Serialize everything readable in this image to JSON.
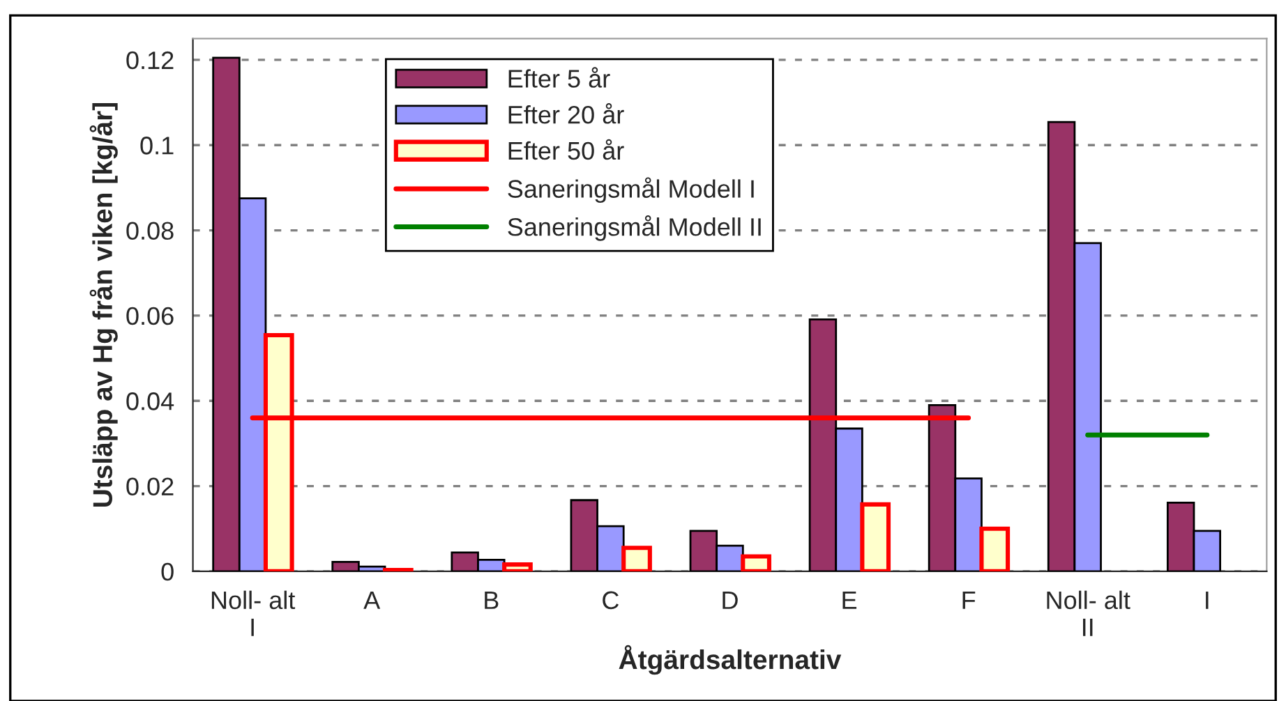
{
  "chart_data": {
    "type": "bar",
    "xlabel": "Åtgärdsalternativ",
    "ylabel": "Utsläpp av Hg från viken [kg/år]",
    "categories": [
      "Noll- alt\nI",
      "A",
      "B",
      "C",
      "D",
      "E",
      "F",
      "Noll- alt\nII",
      "I"
    ],
    "series": [
      {
        "name": "Efter 5 år",
        "color": "#993366",
        "values": [
          0.1205,
          0.0022,
          0.0044,
          0.0167,
          0.0095,
          0.0591,
          0.039,
          0.1054,
          0.0161
        ]
      },
      {
        "name": "Efter 20 år",
        "color": "#9999ff",
        "values": [
          0.0875,
          0.0011,
          0.0027,
          0.0106,
          0.006,
          0.0335,
          0.0218,
          0.077,
          0.0095
        ]
      },
      {
        "name": "Efter 50 år",
        "color": "#ffffcc",
        "values": [
          0.0554,
          0.0003,
          0.0016,
          0.0055,
          0.0035,
          0.0157,
          0.01,
          null,
          null
        ]
      },
      {
        "name": "Saneringsmål Modell I",
        "type": "line",
        "color": "#ff0000",
        "values": [
          0.036,
          0.036,
          0.036,
          0.036,
          0.036,
          0.036,
          0.036,
          null,
          null
        ]
      },
      {
        "name": "Saneringsmål Modell II",
        "type": "line",
        "color": "#008000",
        "values": [
          null,
          null,
          null,
          null,
          null,
          null,
          null,
          0.032,
          0.032
        ]
      }
    ],
    "ylim": [
      0,
      0.125
    ],
    "yticks": [
      0,
      0.02,
      0.04,
      0.06,
      0.08,
      0.1,
      0.12
    ],
    "grid": "y",
    "legend": "top"
  }
}
